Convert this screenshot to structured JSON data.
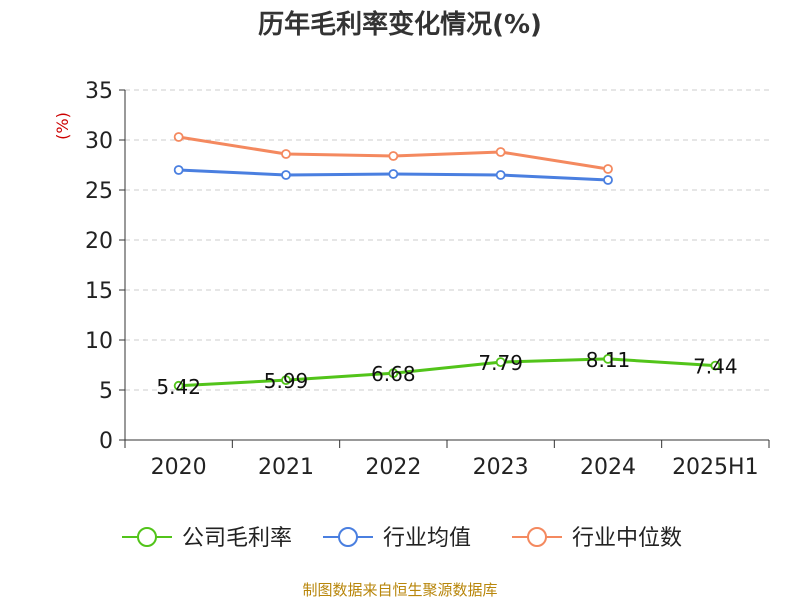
{
  "chart_data": {
    "type": "line",
    "title": "历年毛利率变化情况(%)",
    "unit_label": "(%)",
    "categories": [
      "2020",
      "2021",
      "2022",
      "2023",
      "2024",
      "2025H1"
    ],
    "ylim": [
      0,
      35
    ],
    "yticks": [
      0,
      5,
      10,
      15,
      20,
      25,
      30,
      35
    ],
    "grid": true,
    "legend_position": "bottom",
    "series": [
      {
        "name": "公司毛利率",
        "color": "#52c41a",
        "values": [
          5.42,
          5.99,
          6.68,
          7.79,
          8.11,
          7.44
        ],
        "show_labels": true
      },
      {
        "name": "行业均值",
        "color": "#4a7fe0",
        "values": [
          27.0,
          26.5,
          26.6,
          26.5,
          26.0,
          null
        ],
        "show_labels": false
      },
      {
        "name": "行业中位数",
        "color": "#f4895f",
        "values": [
          30.3,
          28.6,
          28.4,
          28.8,
          27.1,
          null
        ],
        "show_labels": false
      }
    ]
  },
  "colors": {
    "unit_label": "#cc0000",
    "footer": "#b8860b",
    "grid": "#cccccc",
    "axis": "#333333"
  },
  "footer": "制图数据来自恒生聚源数据库"
}
